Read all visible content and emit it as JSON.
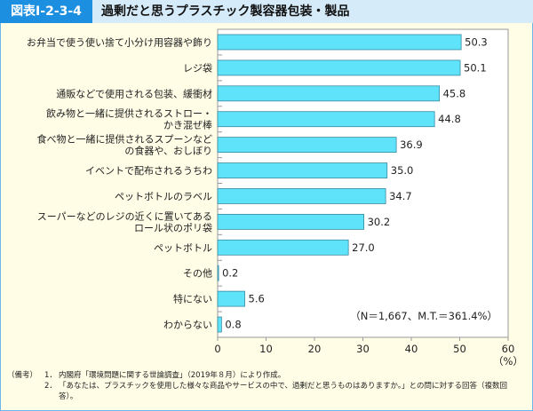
{
  "header": {
    "figure_number": "図表Ⅰ-2-3-4",
    "title": "過剰だと思うプラスチック製容器包装・製品"
  },
  "chart_data": {
    "type": "bar",
    "orientation": "horizontal",
    "categories": [
      [
        "お弁当で使う使い捨て小分け用容器や飾り"
      ],
      [
        "レジ袋"
      ],
      [
        "通販などで使用される包装、緩衝材"
      ],
      [
        "飲み物と一緒に提供されるストロー・",
        "かき混ぜ棒"
      ],
      [
        "食べ物と一緒に提供されるスプーンなど",
        "の食器や、おしぼり"
      ],
      [
        "イベントで配布されるうちわ"
      ],
      [
        "ペットボトルのラベル"
      ],
      [
        "スーパーなどのレジの近くに置いてある",
        "ロール状のポリ袋"
      ],
      [
        "ペットボトル"
      ],
      [
        "その他"
      ],
      [
        "特にない"
      ],
      [
        "わからない"
      ]
    ],
    "values": [
      50.3,
      50.1,
      45.8,
      44.8,
      36.9,
      35.0,
      34.7,
      30.2,
      27.0,
      0.2,
      5.6,
      0.8
    ],
    "value_labels": [
      "50.3",
      "50.1",
      "45.8",
      "44.8",
      "36.9",
      "35.0",
      "34.7",
      "30.2",
      "27.0",
      "0.2",
      "5.6",
      "0.8"
    ],
    "xlim": [
      0,
      60
    ],
    "xticks": [
      "0",
      "10",
      "20",
      "30",
      "40",
      "50",
      "60"
    ],
    "xunit": "（%）",
    "annotation": "（N＝1,667、M.T.＝361.4%）",
    "bar_color": "#5ee3fb",
    "grid": false
  },
  "notes": {
    "label": "（備考）",
    "items": [
      {
        "num": "1．",
        "text": "内閣府「環境問題に関する世論調査」（2019年８月）により作成。"
      },
      {
        "num": "2．",
        "text": "「あなたは、プラスチックを使用した様々な商品やサービスの中で、過剰だと思うものはありますか。」との問に対する回答（複数回答）。"
      }
    ]
  }
}
